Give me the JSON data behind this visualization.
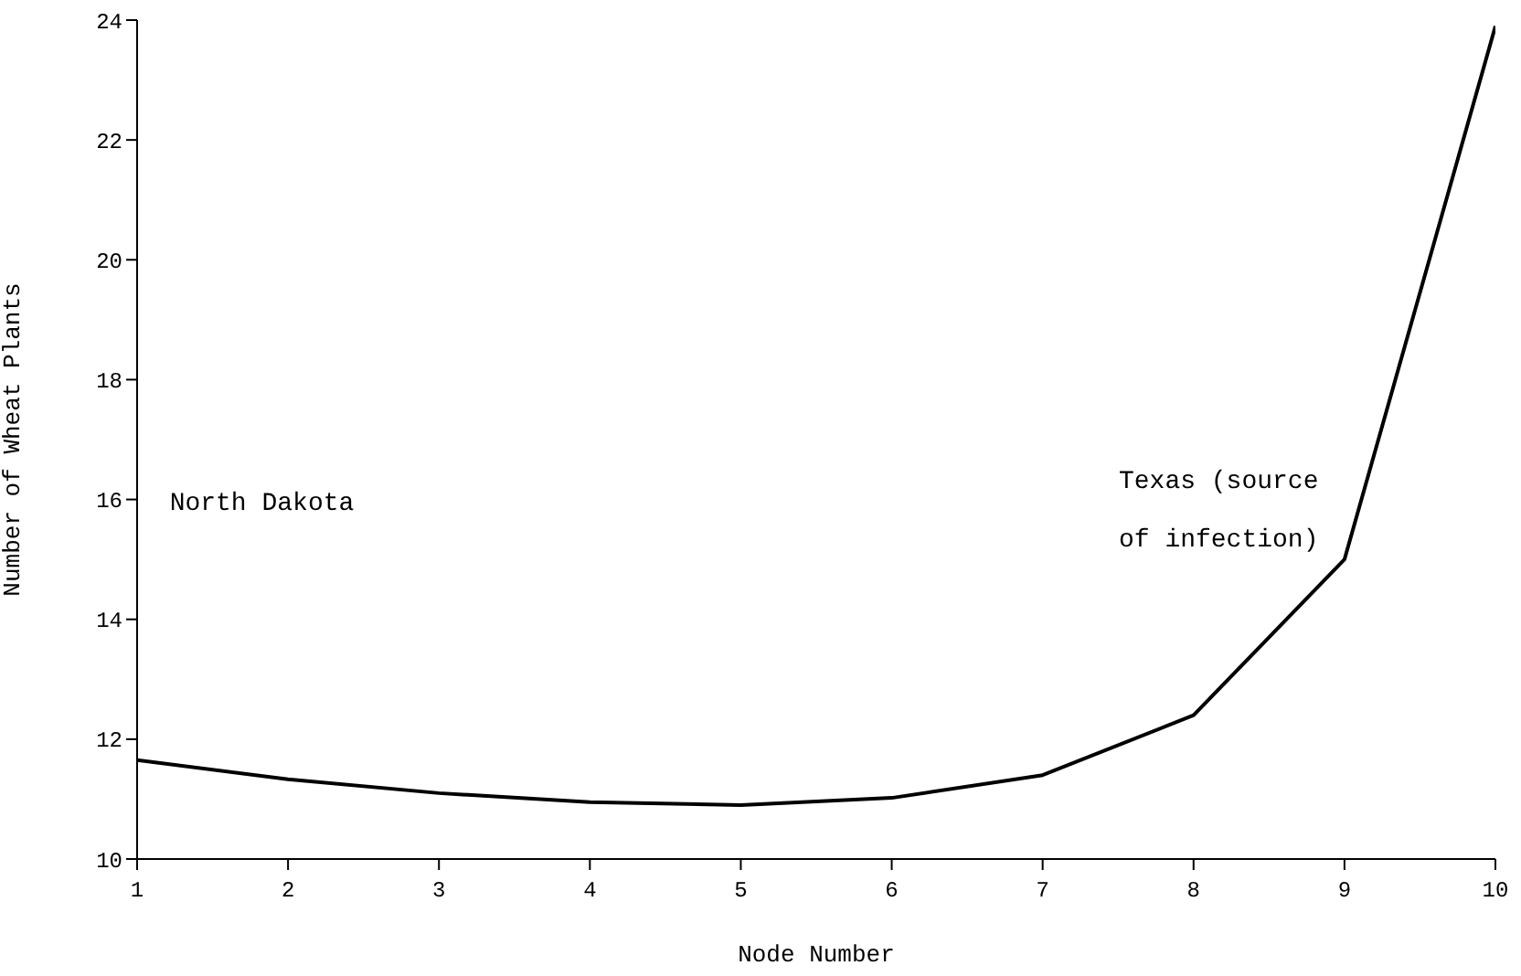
{
  "chart_data": {
    "type": "line",
    "xlabel": "Node Number",
    "ylabel": "Number of Wheat Plants",
    "x": [
      1,
      2,
      3,
      4,
      5,
      6,
      7,
      8,
      9,
      10
    ],
    "series": [
      {
        "color": "#000000",
        "values": [
          11.65,
          11.33,
          11.1,
          10.95,
          10.9,
          11.02,
          11.4,
          12.4,
          15.0,
          23.9
        ]
      }
    ],
    "xlim": [
      1,
      10
    ],
    "xticks": [
      1,
      2,
      3,
      4,
      5,
      6,
      7,
      8,
      9,
      10
    ],
    "ylim": [
      10,
      24
    ],
    "yticks": [
      10,
      12,
      14,
      16,
      18,
      20,
      22,
      24
    ],
    "annotations": [
      "North Dakota",
      "Texas (source of infection)"
    ],
    "grid": false,
    "legend": false,
    "marker": "none",
    "line_style": "solid"
  }
}
